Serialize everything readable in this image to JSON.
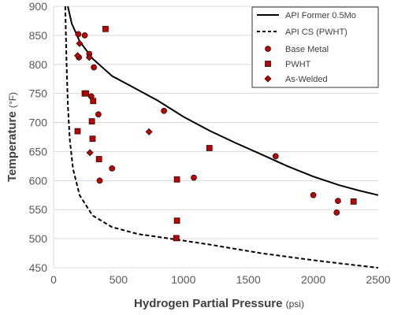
{
  "chart_data": {
    "type": "scatter",
    "xlabel": "Hydrogen Partial Pressure",
    "xlabel_unit": "(psi)",
    "ylabel": "Temperature",
    "ylabel_unit": "(°F)",
    "xlim": [
      0,
      2500
    ],
    "ylim": [
      450,
      900
    ],
    "x_ticks": [
      0,
      500,
      1000,
      1500,
      2000,
      2500
    ],
    "y_ticks": [
      450,
      500,
      550,
      600,
      650,
      700,
      750,
      800,
      850,
      900
    ],
    "grid": {
      "horizontal": true,
      "vertical": false
    },
    "legend_position": "top-right",
    "marker_color": "#c00000",
    "series": [
      {
        "name": "API Former 0.5Mo",
        "kind": "line",
        "style": "solid",
        "points": [
          [
            110,
            900
          ],
          [
            140,
            870
          ],
          [
            200,
            840
          ],
          [
            300,
            810
          ],
          [
            450,
            780
          ],
          [
            600,
            762
          ],
          [
            800,
            738
          ],
          [
            1000,
            710
          ],
          [
            1200,
            686
          ],
          [
            1400,
            665
          ],
          [
            1600,
            645
          ],
          [
            1800,
            625
          ],
          [
            2000,
            607
          ],
          [
            2200,
            592
          ],
          [
            2350,
            583
          ],
          [
            2500,
            575
          ]
        ]
      },
      {
        "name": "API CS (PWHT)",
        "kind": "line",
        "style": "dashed",
        "points": [
          [
            90,
            900
          ],
          [
            100,
            800
          ],
          [
            110,
            730
          ],
          [
            125,
            670
          ],
          [
            150,
            620
          ],
          [
            200,
            575
          ],
          [
            300,
            540
          ],
          [
            450,
            520
          ],
          [
            650,
            508
          ],
          [
            900,
            500
          ],
          [
            1200,
            490
          ],
          [
            1600,
            475
          ],
          [
            2000,
            463
          ],
          [
            2300,
            455
          ],
          [
            2500,
            450
          ]
        ]
      },
      {
        "name": "Base Metal",
        "kind": "scatter",
        "marker": "circle",
        "points": [
          [
            190,
            852
          ],
          [
            240,
            850
          ],
          [
            275,
            818
          ],
          [
            310,
            795
          ],
          [
            195,
            812
          ],
          [
            290,
            745
          ],
          [
            345,
            714
          ],
          [
            850,
            720
          ],
          [
            450,
            621
          ],
          [
            355,
            600
          ],
          [
            1080,
            605
          ],
          [
            1710,
            642
          ],
          [
            2000,
            575
          ],
          [
            2190,
            565
          ],
          [
            2180,
            545
          ]
        ]
      },
      {
        "name": "PWHT",
        "kind": "scatter",
        "marker": "square",
        "points": [
          [
            400,
            861
          ],
          [
            240,
            750
          ],
          [
            250,
            750
          ],
          [
            305,
            737
          ],
          [
            295,
            702
          ],
          [
            185,
            685
          ],
          [
            300,
            672
          ],
          [
            350,
            637
          ],
          [
            1200,
            656
          ],
          [
            950,
            602
          ],
          [
            950,
            531
          ],
          [
            945,
            501
          ],
          [
            2310,
            564
          ]
        ]
      },
      {
        "name": "As-Welded",
        "kind": "scatter",
        "marker": "diamond",
        "points": [
          [
            185,
            815
          ],
          [
            200,
            836
          ],
          [
            275,
            812
          ],
          [
            735,
            684
          ],
          [
            280,
            648
          ]
        ]
      }
    ]
  }
}
